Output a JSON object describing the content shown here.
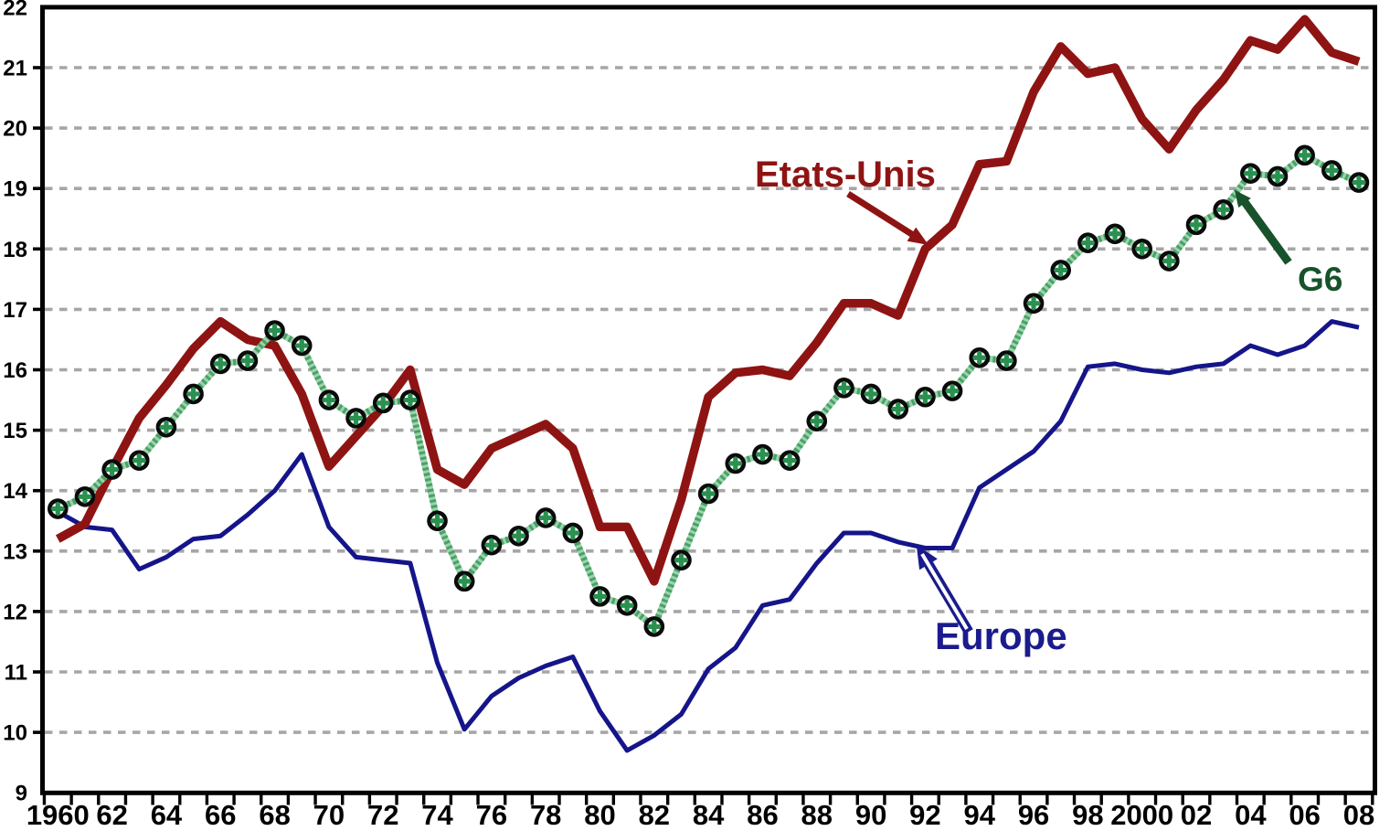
{
  "chart_data": {
    "type": "line",
    "title": "",
    "xlabel": "",
    "ylabel": "",
    "x": [
      1960,
      1961,
      1962,
      1963,
      1964,
      1965,
      1966,
      1967,
      1968,
      1969,
      1970,
      1971,
      1972,
      1973,
      1974,
      1975,
      1976,
      1977,
      1978,
      1979,
      1980,
      1981,
      1982,
      1983,
      1984,
      1985,
      1986,
      1987,
      1988,
      1989,
      1990,
      1991,
      1992,
      1993,
      1994,
      1995,
      1996,
      1997,
      1998,
      1999,
      2000,
      2001,
      2002,
      2003,
      2004,
      2005,
      2006,
      2007,
      2008
    ],
    "xlim": [
      1959.3,
      2009.0
    ],
    "ylim": [
      9,
      22
    ],
    "yticks": [
      9,
      10,
      11,
      12,
      13,
      14,
      15,
      16,
      17,
      18,
      19,
      20,
      21,
      22
    ],
    "xtick_years": [
      1960,
      1962,
      1964,
      1966,
      1968,
      1970,
      1972,
      1974,
      1976,
      1978,
      1980,
      1982,
      1984,
      1986,
      1988,
      1990,
      1992,
      1994,
      1996,
      1998,
      2000,
      2002,
      2004,
      2006,
      2008
    ],
    "xtick_labels": [
      "1960",
      "62",
      "64",
      "66",
      "68",
      "70",
      "72",
      "74",
      "76",
      "78",
      "80",
      "82",
      "84",
      "86",
      "88",
      "90",
      "92",
      "94",
      "96",
      "98",
      "2000",
      "02",
      "04",
      "06",
      "08"
    ],
    "grid": "horizontal-dashed",
    "legend_position": "inline-annotations",
    "series": [
      {
        "name": "Etats-Unis",
        "color": "#8e1413",
        "style": "thick-solid",
        "values": [
          13.2,
          13.45,
          14.35,
          15.2,
          15.75,
          16.35,
          16.8,
          16.5,
          16.4,
          15.6,
          14.4,
          14.9,
          15.4,
          16.0,
          14.35,
          14.1,
          14.7,
          14.9,
          15.1,
          14.7,
          13.4,
          13.4,
          12.5,
          13.85,
          15.55,
          15.95,
          16.0,
          15.9,
          16.45,
          17.1,
          17.1,
          16.9,
          18.0,
          18.4,
          19.4,
          19.45,
          20.6,
          21.35,
          20.9,
          21.0,
          20.15,
          19.65,
          20.3,
          20.8,
          21.45,
          21.3,
          21.8,
          21.25,
          21.1
        ]
      },
      {
        "name": "G6",
        "color": "#2a9150",
        "style": "hatched-green-with-cross-markers",
        "values": [
          13.7,
          13.9,
          14.35,
          14.5,
          15.05,
          15.6,
          16.1,
          16.15,
          16.65,
          16.4,
          15.5,
          15.2,
          15.45,
          15.5,
          13.5,
          12.5,
          13.1,
          13.25,
          13.55,
          13.3,
          12.25,
          12.1,
          11.75,
          12.85,
          13.95,
          14.45,
          14.6,
          14.5,
          15.15,
          15.7,
          15.6,
          15.35,
          15.55,
          15.65,
          16.2,
          16.15,
          17.1,
          17.65,
          18.1,
          18.25,
          18.0,
          17.8,
          18.4,
          18.65,
          19.25,
          19.2,
          19.55,
          19.3,
          19.1
        ]
      },
      {
        "name": "Europe",
        "color": "#15158a",
        "style": "medium-solid",
        "values": [
          13.65,
          13.4,
          13.35,
          12.7,
          12.9,
          13.2,
          13.25,
          13.6,
          14.0,
          14.6,
          13.4,
          12.9,
          12.85,
          12.8,
          11.15,
          10.05,
          10.6,
          10.9,
          11.1,
          11.25,
          10.35,
          9.7,
          9.95,
          10.3,
          11.05,
          11.4,
          12.1,
          12.2,
          12.8,
          13.3,
          13.3,
          13.15,
          13.05,
          13.05,
          14.05,
          14.35,
          14.65,
          15.15,
          16.05,
          16.1,
          16.0,
          15.95,
          16.05,
          16.1,
          16.4,
          16.25,
          16.4,
          16.8,
          16.7
        ]
      }
    ]
  },
  "annotations": {
    "etats_unis": {
      "text": "Etats-Unis",
      "color": "#8e1413",
      "target_year": 1992,
      "target_value": 18.0
    },
    "g6": {
      "text": "G6",
      "color": "#17522a",
      "target_year": 2003.4,
      "target_value": 18.9
    },
    "europe": {
      "text": "Europe",
      "color": "#1b1b8e",
      "target_year": 1992,
      "target_value": 13.05
    }
  },
  "axis": {
    "color": "#000000",
    "gridline_color": "#a6a6a6",
    "background": "#ffffff"
  }
}
